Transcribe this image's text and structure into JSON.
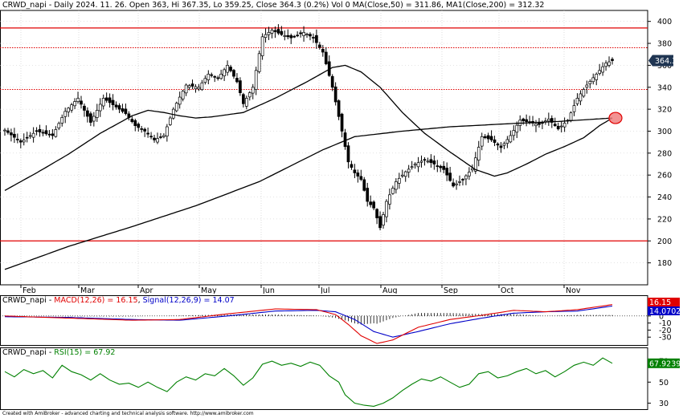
{
  "price_header": "CRWD_napi - Daily 2024. 11. 26. Open 363, Hi 367.35, Lo 359.25, Close 364.3 (0.2%) Vol 0 MA(Close,50) = 311.86, MA1(Close,200) = 312.32",
  "macd_header_prefix": "CRWD_napi - ",
  "macd_header_macd": "MACD(12,26) = 16.15",
  "macd_header_sep": ", ",
  "macd_header_signal": "Signal(12,26,9) = 14.07",
  "rsi_header_prefix": "CRWD_napi - ",
  "rsi_header_rsi": "RSI(15) = 67.92",
  "credit": "Created with AmiBroker - advanced charting and technical analysis software. http://www.amibroker.com",
  "colors": {
    "up": "#ffffff",
    "down": "#000000",
    "ma": "#000000",
    "hline": "#e00000",
    "macd": "#e00000",
    "signal": "#0000c8",
    "hist": "#000000",
    "rsi": "#008000",
    "tag_last": "#1f3552",
    "tag_macd": "#e00000",
    "tag_signal": "#0000c8",
    "tag_rsi": "#008000",
    "grid": "#c8c8c8"
  },
  "chart_data": [
    {
      "type": "candlestick",
      "title": "CRWD_napi - Daily 2024. 11. 26.",
      "x_labels": [
        "Feb",
        "Mar",
        "Apr",
        "May",
        "Jun",
        "Jul",
        "Aug",
        "Sep",
        "Oct",
        "Nov"
      ],
      "ylim": [
        160,
        410
      ],
      "y_ticks": [
        180,
        200,
        220,
        240,
        260,
        280,
        300,
        320,
        340,
        360,
        380,
        400
      ],
      "hlines_solid": [
        394,
        200
      ],
      "hlines_dotted": [
        376,
        338
      ],
      "last_value_tag": "364.3",
      "close_path": [
        {
          "t": 0,
          "v": 301
        },
        {
          "t": 5,
          "v": 290
        },
        {
          "t": 10,
          "v": 300
        },
        {
          "t": 15,
          "v": 296
        },
        {
          "t": 19,
          "v": 318
        },
        {
          "t": 23,
          "v": 330
        },
        {
          "t": 27,
          "v": 308
        },
        {
          "t": 31,
          "v": 330
        },
        {
          "t": 35,
          "v": 322
        },
        {
          "t": 38,
          "v": 316
        },
        {
          "t": 41,
          "v": 305
        },
        {
          "t": 44,
          "v": 300
        },
        {
          "t": 47,
          "v": 292
        },
        {
          "t": 50,
          "v": 296
        },
        {
          "t": 53,
          "v": 320
        },
        {
          "t": 57,
          "v": 342
        },
        {
          "t": 61,
          "v": 340
        },
        {
          "t": 64,
          "v": 352
        },
        {
          "t": 67,
          "v": 348
        },
        {
          "t": 70,
          "v": 360
        },
        {
          "t": 73,
          "v": 345
        },
        {
          "t": 75,
          "v": 325
        },
        {
          "t": 78,
          "v": 340
        },
        {
          "t": 81,
          "v": 386
        },
        {
          "t": 84,
          "v": 392
        },
        {
          "t": 87,
          "v": 388
        },
        {
          "t": 90,
          "v": 385
        },
        {
          "t": 94,
          "v": 390
        },
        {
          "t": 97,
          "v": 385
        },
        {
          "t": 100,
          "v": 372
        },
        {
          "t": 103,
          "v": 340
        },
        {
          "t": 106,
          "v": 300
        },
        {
          "t": 108,
          "v": 272
        },
        {
          "t": 110,
          "v": 262
        },
        {
          "t": 112,
          "v": 256
        },
        {
          "t": 114,
          "v": 236
        },
        {
          "t": 116,
          "v": 230
        },
        {
          "t": 118,
          "v": 212
        },
        {
          "t": 120,
          "v": 236
        },
        {
          "t": 123,
          "v": 254
        },
        {
          "t": 126,
          "v": 263
        },
        {
          "t": 129,
          "v": 270
        },
        {
          "t": 132,
          "v": 274
        },
        {
          "t": 135,
          "v": 270
        },
        {
          "t": 138,
          "v": 265
        },
        {
          "t": 141,
          "v": 250
        },
        {
          "t": 144,
          "v": 256
        },
        {
          "t": 147,
          "v": 266
        },
        {
          "t": 150,
          "v": 295
        },
        {
          "t": 153,
          "v": 292
        },
        {
          "t": 156,
          "v": 285
        },
        {
          "t": 159,
          "v": 296
        },
        {
          "t": 162,
          "v": 310
        },
        {
          "t": 165,
          "v": 308
        },
        {
          "t": 168,
          "v": 306
        },
        {
          "t": 171,
          "v": 311
        },
        {
          "t": 174,
          "v": 302
        },
        {
          "t": 177,
          "v": 310
        },
        {
          "t": 180,
          "v": 330
        },
        {
          "t": 183,
          "v": 342
        },
        {
          "t": 186,
          "v": 352
        },
        {
          "t": 189,
          "v": 362
        },
        {
          "t": 191,
          "v": 364.3
        }
      ],
      "ma50": [
        {
          "t": 0,
          "v": 246
        },
        {
          "t": 10,
          "v": 262
        },
        {
          "t": 20,
          "v": 279
        },
        {
          "t": 30,
          "v": 298
        },
        {
          "t": 40,
          "v": 314
        },
        {
          "t": 45,
          "v": 319
        },
        {
          "t": 50,
          "v": 317
        },
        {
          "t": 55,
          "v": 314
        },
        {
          "t": 60,
          "v": 312
        },
        {
          "t": 65,
          "v": 313
        },
        {
          "t": 75,
          "v": 317
        },
        {
          "t": 85,
          "v": 330
        },
        {
          "t": 95,
          "v": 345
        },
        {
          "t": 103,
          "v": 358
        },
        {
          "t": 107,
          "v": 360
        },
        {
          "t": 112,
          "v": 354
        },
        {
          "t": 118,
          "v": 340
        },
        {
          "t": 125,
          "v": 317
        },
        {
          "t": 132,
          "v": 298
        },
        {
          "t": 140,
          "v": 281
        },
        {
          "t": 148,
          "v": 265
        },
        {
          "t": 154,
          "v": 259
        },
        {
          "t": 158,
          "v": 262
        },
        {
          "t": 164,
          "v": 270
        },
        {
          "t": 170,
          "v": 279
        },
        {
          "t": 176,
          "v": 286
        },
        {
          "t": 182,
          "v": 294
        },
        {
          "t": 187,
          "v": 305
        },
        {
          "t": 191,
          "v": 312
        }
      ],
      "ma200": [
        {
          "t": 0,
          "v": 174
        },
        {
          "t": 20,
          "v": 195
        },
        {
          "t": 40,
          "v": 213
        },
        {
          "t": 60,
          "v": 232
        },
        {
          "t": 80,
          "v": 254
        },
        {
          "t": 100,
          "v": 283
        },
        {
          "t": 110,
          "v": 295
        },
        {
          "t": 125,
          "v": 300
        },
        {
          "t": 140,
          "v": 304
        },
        {
          "t": 160,
          "v": 307
        },
        {
          "t": 175,
          "v": 309
        },
        {
          "t": 191,
          "v": 312
        }
      ],
      "marker_circle": {
        "t": 191,
        "v": 312
      }
    },
    {
      "type": "macd",
      "ylim": [
        -40,
        26
      ],
      "y_ticks": [
        20,
        10,
        0,
        -10,
        -20,
        -30
      ],
      "macd": [
        {
          "t": 0,
          "v": 0
        },
        {
          "t": 20,
          "v": -3
        },
        {
          "t": 40,
          "v": -6
        },
        {
          "t": 55,
          "v": -5
        },
        {
          "t": 70,
          "v": 3
        },
        {
          "t": 85,
          "v": 10
        },
        {
          "t": 98,
          "v": 9
        },
        {
          "t": 104,
          "v": 2
        },
        {
          "t": 108,
          "v": -12
        },
        {
          "t": 112,
          "v": -28
        },
        {
          "t": 117,
          "v": -39
        },
        {
          "t": 122,
          "v": -34
        },
        {
          "t": 130,
          "v": -16
        },
        {
          "t": 140,
          "v": -5
        },
        {
          "t": 150,
          "v": 1
        },
        {
          "t": 160,
          "v": 8
        },
        {
          "t": 170,
          "v": 6
        },
        {
          "t": 180,
          "v": 9
        },
        {
          "t": 191,
          "v": 16.15
        }
      ],
      "signal": [
        {
          "t": 0,
          "v": -1
        },
        {
          "t": 20,
          "v": -2
        },
        {
          "t": 40,
          "v": -5
        },
        {
          "t": 55,
          "v": -6
        },
        {
          "t": 70,
          "v": 0
        },
        {
          "t": 85,
          "v": 7
        },
        {
          "t": 98,
          "v": 8
        },
        {
          "t": 104,
          "v": 6
        },
        {
          "t": 110,
          "v": -5
        },
        {
          "t": 116,
          "v": -22
        },
        {
          "t": 122,
          "v": -30
        },
        {
          "t": 130,
          "v": -22
        },
        {
          "t": 140,
          "v": -11
        },
        {
          "t": 150,
          "v": -3
        },
        {
          "t": 160,
          "v": 4
        },
        {
          "t": 170,
          "v": 6
        },
        {
          "t": 180,
          "v": 7
        },
        {
          "t": 191,
          "v": 14.07
        }
      ],
      "tags": [
        "16.15",
        "14.0702"
      ]
    },
    {
      "type": "line",
      "name": "RSI(15)",
      "ylim": [
        25,
        80
      ],
      "y_ticks": [
        70,
        50,
        30
      ],
      "values": [
        {
          "t": 0,
          "v": 60
        },
        {
          "t": 3,
          "v": 55
        },
        {
          "t": 6,
          "v": 62
        },
        {
          "t": 9,
          "v": 58
        },
        {
          "t": 12,
          "v": 61
        },
        {
          "t": 15,
          "v": 54
        },
        {
          "t": 18,
          "v": 66
        },
        {
          "t": 21,
          "v": 60
        },
        {
          "t": 24,
          "v": 57
        },
        {
          "t": 27,
          "v": 52
        },
        {
          "t": 30,
          "v": 58
        },
        {
          "t": 33,
          "v": 52
        },
        {
          "t": 36,
          "v": 48
        },
        {
          "t": 39,
          "v": 49
        },
        {
          "t": 42,
          "v": 45
        },
        {
          "t": 45,
          "v": 50
        },
        {
          "t": 48,
          "v": 45
        },
        {
          "t": 51,
          "v": 41
        },
        {
          "t": 54,
          "v": 50
        },
        {
          "t": 57,
          "v": 55
        },
        {
          "t": 60,
          "v": 52
        },
        {
          "t": 63,
          "v": 58
        },
        {
          "t": 66,
          "v": 56
        },
        {
          "t": 69,
          "v": 63
        },
        {
          "t": 72,
          "v": 56
        },
        {
          "t": 75,
          "v": 47
        },
        {
          "t": 78,
          "v": 54
        },
        {
          "t": 81,
          "v": 67
        },
        {
          "t": 84,
          "v": 70
        },
        {
          "t": 87,
          "v": 66
        },
        {
          "t": 90,
          "v": 68
        },
        {
          "t": 93,
          "v": 65
        },
        {
          "t": 96,
          "v": 69
        },
        {
          "t": 99,
          "v": 66
        },
        {
          "t": 102,
          "v": 56
        },
        {
          "t": 105,
          "v": 50
        },
        {
          "t": 107,
          "v": 38
        },
        {
          "t": 110,
          "v": 30
        },
        {
          "t": 113,
          "v": 28
        },
        {
          "t": 116,
          "v": 27
        },
        {
          "t": 119,
          "v": 30
        },
        {
          "t": 122,
          "v": 35
        },
        {
          "t": 125,
          "v": 42
        },
        {
          "t": 128,
          "v": 48
        },
        {
          "t": 131,
          "v": 53
        },
        {
          "t": 134,
          "v": 51
        },
        {
          "t": 137,
          "v": 55
        },
        {
          "t": 140,
          "v": 50
        },
        {
          "t": 143,
          "v": 45
        },
        {
          "t": 146,
          "v": 48
        },
        {
          "t": 149,
          "v": 58
        },
        {
          "t": 152,
          "v": 60
        },
        {
          "t": 155,
          "v": 54
        },
        {
          "t": 158,
          "v": 56
        },
        {
          "t": 161,
          "v": 60
        },
        {
          "t": 164,
          "v": 63
        },
        {
          "t": 167,
          "v": 58
        },
        {
          "t": 170,
          "v": 61
        },
        {
          "t": 173,
          "v": 55
        },
        {
          "t": 176,
          "v": 60
        },
        {
          "t": 179,
          "v": 66
        },
        {
          "t": 182,
          "v": 69
        },
        {
          "t": 185,
          "v": 66
        },
        {
          "t": 188,
          "v": 73
        },
        {
          "t": 191,
          "v": 67.92
        }
      ],
      "tag": "67.9239"
    }
  ]
}
